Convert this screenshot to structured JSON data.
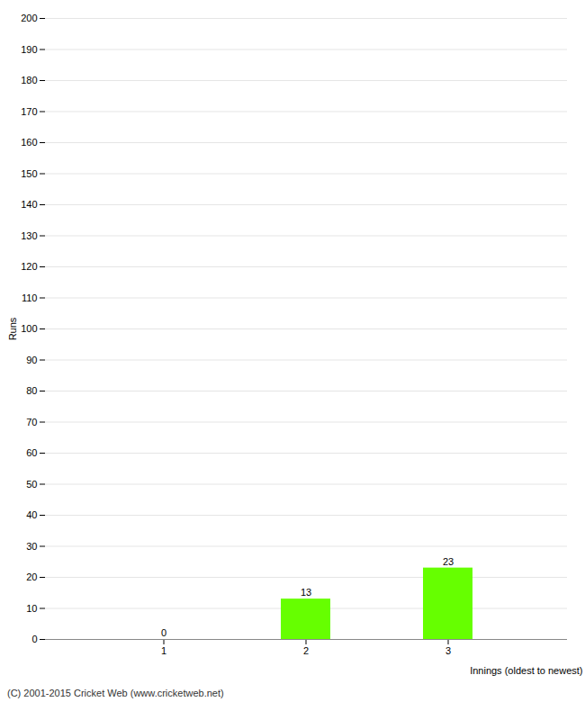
{
  "chart_data": {
    "type": "bar",
    "categories": [
      "1",
      "2",
      "3"
    ],
    "values": [
      0,
      13,
      23
    ],
    "color": "#66ff00",
    "xlabel": "Innings (oldest to newest)",
    "ylabel": "Runs",
    "ylim": [
      0,
      200
    ],
    "yticks": [
      0,
      10,
      20,
      30,
      40,
      50,
      60,
      70,
      80,
      90,
      100,
      110,
      120,
      130,
      140,
      150,
      160,
      170,
      180,
      190,
      200
    ],
    "grid": true,
    "data_labels": true,
    "caption": "(C) 2001-2015 Cricket Web (www.cricketweb.net)"
  }
}
